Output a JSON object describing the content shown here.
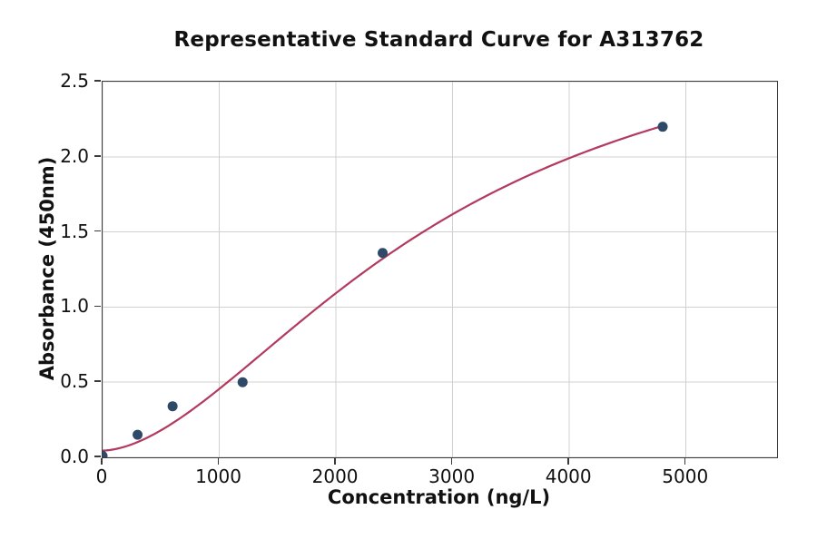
{
  "chart_data": {
    "type": "scatter",
    "title": "Representative Standard Curve for A313762",
    "xlabel": "Concentration (ng/L)",
    "ylabel": "Absorbance (450nm)",
    "xlim": [
      0,
      5780
    ],
    "ylim": [
      0,
      2.5
    ],
    "grid": true,
    "legend_position": "none",
    "x_ticks": {
      "values": [
        0,
        1000,
        2000,
        3000,
        4000,
        5000
      ],
      "labels": [
        "0",
        "1000",
        "2000",
        "3000",
        "4000",
        "5000"
      ]
    },
    "y_ticks": {
      "values": [
        0,
        0.5,
        1.0,
        1.5,
        2.0,
        2.5
      ],
      "labels": [
        "0.0",
        "0.5",
        "1.0",
        "1.5",
        "2.0",
        "2.5"
      ]
    },
    "points": [
      {
        "x": 0,
        "y": 0.01
      },
      {
        "x": 300,
        "y": 0.15
      },
      {
        "x": 600,
        "y": 0.34
      },
      {
        "x": 1200,
        "y": 0.5
      },
      {
        "x": 2400,
        "y": 1.36
      },
      {
        "x": 4800,
        "y": 2.2
      }
    ],
    "fit_curve": {
      "model": "4PL",
      "params": {
        "a": 0.045,
        "b": 1.75,
        "c": 2900,
        "d": 3.1
      },
      "x_start": 0,
      "x_end": 4800
    },
    "colors": {
      "point": "#2e4a68",
      "curve": "#b23a5f",
      "grid": "#d0d0d0",
      "spine": "#3a3a3a",
      "text": "#111111"
    }
  }
}
